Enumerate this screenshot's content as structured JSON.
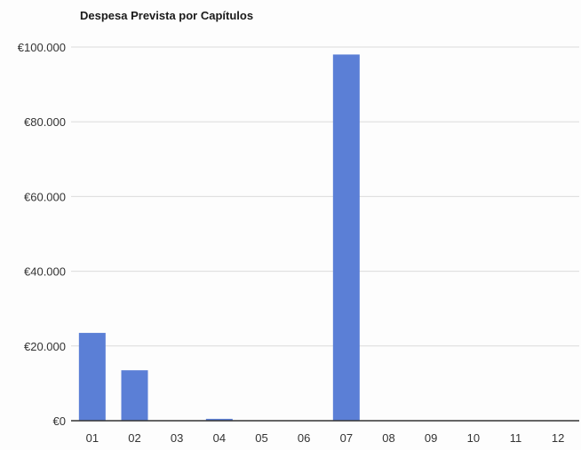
{
  "chart_data": {
    "type": "bar",
    "title": "Despesa Prevista por Capítulos",
    "xlabel": "",
    "ylabel": "",
    "categories": [
      "01",
      "02",
      "03",
      "04",
      "05",
      "06",
      "07",
      "08",
      "09",
      "10",
      "11",
      "12"
    ],
    "values": [
      23500,
      13500,
      0,
      500,
      0,
      0,
      98000,
      0,
      0,
      0,
      0,
      0
    ],
    "ylim": [
      0,
      100000
    ],
    "yticks": [
      0,
      20000,
      40000,
      60000,
      80000,
      100000
    ],
    "ytick_labels": [
      "€0",
      "€20.000",
      "€40.000",
      "€60.000",
      "€80.000",
      "€100.000"
    ],
    "grid": true,
    "legend": "none",
    "bar_color": "#5b7fd6",
    "grid_color": "#dcdcdc",
    "axis_color": "#333333"
  }
}
